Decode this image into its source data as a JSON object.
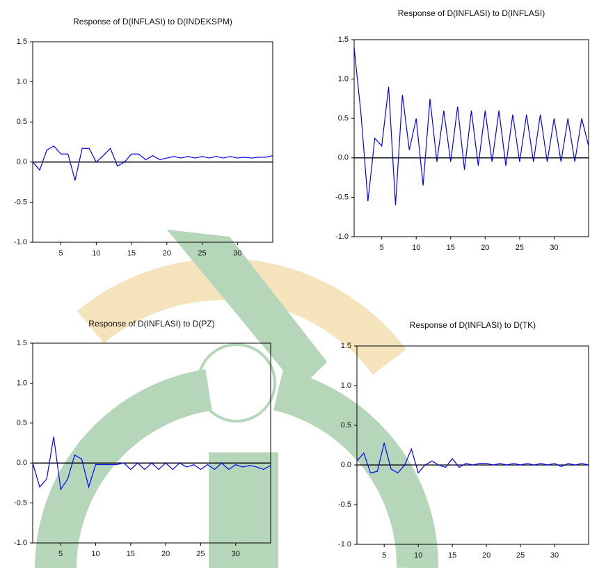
{
  "chart_data": [
    {
      "type": "line",
      "title": "Response of D(INFLASI) to D(INDEKSPM)",
      "x": [
        1,
        2,
        3,
        4,
        5,
        6,
        7,
        8,
        9,
        10,
        11,
        12,
        13,
        14,
        15,
        16,
        17,
        18,
        19,
        20,
        21,
        22,
        23,
        24,
        25,
        26,
        27,
        28,
        29,
        30,
        31,
        32,
        33,
        34,
        35
      ],
      "series": [
        {
          "color": "#0000ff",
          "values": [
            0.0,
            -0.1,
            0.15,
            0.2,
            0.1,
            0.1,
            -0.23,
            0.17,
            0.17,
            0.0,
            0.08,
            0.17,
            -0.05,
            0.0,
            0.1,
            0.1,
            0.03,
            0.08,
            0.03,
            0.05,
            0.07,
            0.05,
            0.07,
            0.05,
            0.07,
            0.05,
            0.07,
            0.05,
            0.07,
            0.05,
            0.06,
            0.05,
            0.06,
            0.06,
            0.08
          ]
        }
      ],
      "xlim": [
        1,
        35
      ],
      "ylim": [
        -1.0,
        1.5
      ],
      "xticks": [
        5,
        10,
        15,
        20,
        25,
        30
      ],
      "yticks": [
        {
          "value": -1.0,
          "label": "-1.0"
        },
        -0.5,
        {
          "value": 0.0,
          "label": "0.0"
        },
        0.5,
        {
          "value": 1.0,
          "label": "1.0"
        },
        1.5
      ]
    },
    {
      "type": "line",
      "title": "Response of D(INFLASI) to D(INFLASI)",
      "x": [
        1,
        2,
        3,
        4,
        5,
        6,
        7,
        8,
        9,
        10,
        11,
        12,
        13,
        14,
        15,
        16,
        17,
        18,
        19,
        20,
        21,
        22,
        23,
        24,
        25,
        26,
        27,
        28,
        29,
        30,
        31,
        32,
        33,
        34,
        35
      ],
      "series": [
        {
          "color": "#0000ff",
          "values": [
            1.4,
            0.55,
            -0.55,
            0.25,
            0.15,
            0.9,
            -0.6,
            0.8,
            0.1,
            0.5,
            -0.35,
            0.75,
            -0.05,
            0.6,
            -0.05,
            0.65,
            -0.15,
            0.6,
            -0.1,
            0.6,
            -0.05,
            0.6,
            -0.1,
            0.55,
            -0.05,
            0.55,
            -0.05,
            0.55,
            -0.05,
            0.5,
            -0.05,
            0.5,
            -0.05,
            0.5,
            0.15
          ]
        }
      ],
      "xlim": [
        1,
        35
      ],
      "ylim": [
        -1.0,
        1.5
      ],
      "xticks": [
        5,
        10,
        15,
        20,
        25,
        30
      ],
      "yticks": [
        {
          "value": -1.0,
          "label": "-1.0"
        },
        -0.5,
        {
          "value": 0.0,
          "label": "0.0"
        },
        0.5,
        {
          "value": 1.0,
          "label": "1.0"
        },
        1.5
      ]
    },
    {
      "type": "line",
      "title": "Response of D(INFLASI) to D(PZ)",
      "x": [
        1,
        2,
        3,
        4,
        5,
        6,
        7,
        8,
        9,
        10,
        11,
        12,
        13,
        14,
        15,
        16,
        17,
        18,
        19,
        20,
        21,
        22,
        23,
        24,
        25,
        26,
        27,
        28,
        29,
        30,
        31,
        32,
        33,
        34,
        35
      ],
      "series": [
        {
          "color": "#0000ff",
          "values": [
            0.0,
            -0.3,
            -0.2,
            0.33,
            -0.33,
            -0.2,
            0.1,
            0.05,
            -0.3,
            -0.02,
            -0.02,
            -0.02,
            -0.02,
            0.0,
            -0.08,
            0.0,
            -0.08,
            0.0,
            -0.08,
            0.0,
            -0.08,
            0.0,
            -0.05,
            -0.02,
            -0.08,
            -0.02,
            -0.08,
            0.0,
            -0.08,
            -0.02,
            -0.05,
            -0.03,
            -0.05,
            -0.08,
            -0.03
          ]
        }
      ],
      "xlim": [
        1,
        35
      ],
      "ylim": [
        -1.0,
        1.5
      ],
      "xticks": [
        5,
        10,
        15,
        20,
        25,
        30
      ],
      "yticks": [
        {
          "value": -1.0,
          "label": "-1.0"
        },
        -0.5,
        {
          "value": 0.0,
          "label": "0.0"
        },
        0.5,
        {
          "value": 1.0,
          "label": "1.0"
        },
        1.5
      ]
    },
    {
      "type": "line",
      "title": "Response of D(INFLASI) to D(TK)",
      "x": [
        1,
        2,
        3,
        4,
        5,
        6,
        7,
        8,
        9,
        10,
        11,
        12,
        13,
        14,
        15,
        16,
        17,
        18,
        19,
        20,
        21,
        22,
        23,
        24,
        25,
        26,
        27,
        28,
        29,
        30,
        31,
        32,
        33,
        34,
        35
      ],
      "series": [
        {
          "color": "#0000ff",
          "values": [
            0.05,
            0.15,
            -0.1,
            -0.08,
            0.28,
            -0.05,
            -0.1,
            0.0,
            0.2,
            -0.1,
            0.0,
            0.05,
            0.0,
            -0.03,
            0.08,
            -0.03,
            0.02,
            0.0,
            0.02,
            0.02,
            0.0,
            0.02,
            0.0,
            0.02,
            0.0,
            0.02,
            0.0,
            0.02,
            0.0,
            0.02,
            -0.02,
            0.02,
            0.0,
            0.02,
            0.0
          ]
        }
      ],
      "xlim": [
        1,
        35
      ],
      "ylim": [
        -1.0,
        1.5
      ],
      "xticks": [
        5,
        10,
        15,
        20,
        25,
        30
      ],
      "yticks": [
        {
          "value": -1.0,
          "label": "-1.0"
        },
        -0.5,
        {
          "value": 0.0,
          "label": "0.0"
        },
        0.5,
        {
          "value": 1.0,
          "label": "1.0"
        },
        1.5
      ]
    }
  ]
}
